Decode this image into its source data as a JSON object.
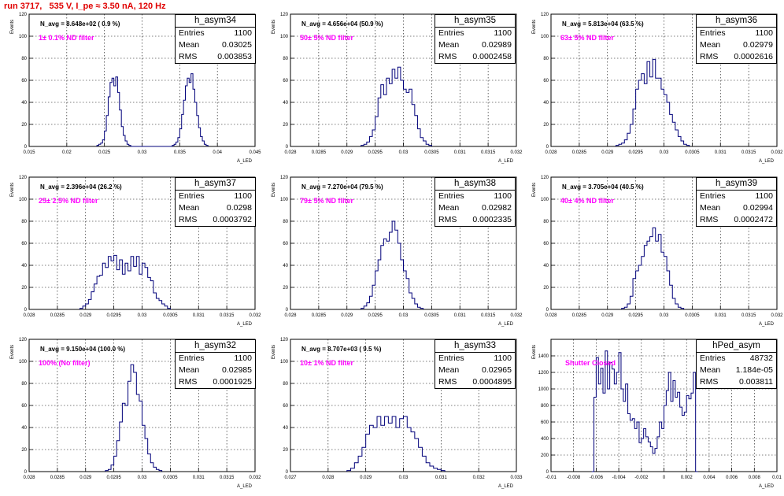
{
  "header": {
    "title": "run 3717,   535 V, I_pe ≈ 3.50 nA, 120 Hz"
  },
  "chart_data": [
    {
      "type": "bar",
      "name": "h_asym34",
      "n_avg": "N_avg = 8.648e+02 ( 0.9 %)",
      "filter": "1± 0.1% ND filter",
      "entries": "1100",
      "mean": "0.03025",
      "rms": "0.003853",
      "xlim": [
        0.015,
        0.045
      ],
      "xticks": [
        "0.015",
        "0.02",
        "0.025",
        "0.03",
        "0.035",
        "0.04",
        "0.045"
      ],
      "ylim": [
        0,
        120
      ],
      "yticks": [
        "0",
        "20",
        "40",
        "60",
        "80",
        "100",
        "120"
      ],
      "ylabel": "Events",
      "xlabel": "A_LED",
      "bin_start": 0.024,
      "bin_width": 0.00025,
      "values": [
        1,
        2,
        3,
        6,
        14,
        28,
        45,
        58,
        62,
        55,
        63,
        49,
        33,
        18,
        10,
        5,
        2,
        1,
        0,
        0,
        0,
        0,
        0,
        0,
        0,
        0,
        0,
        0,
        0,
        0,
        0,
        0,
        0,
        0,
        0,
        0,
        0,
        0,
        0,
        0,
        1,
        2,
        4,
        8,
        16,
        29,
        42,
        55,
        62,
        58,
        66,
        52,
        40,
        28,
        17,
        9,
        5,
        2,
        1
      ]
    },
    {
      "type": "bar",
      "name": "h_asym35",
      "n_avg": "N_avg = 4.656e+04 (50.9 %)",
      "filter": "50± 5% ND filter",
      "entries": "1100",
      "mean": "0.02989",
      "rms": "0.0002458",
      "xlim": [
        0.028,
        0.032
      ],
      "xticks": [
        "0.028",
        "0.0285",
        "0.029",
        "0.0295",
        "0.03",
        "0.0305",
        "0.031",
        "0.0315",
        "0.032"
      ],
      "ylim": [
        0,
        120
      ],
      "yticks": [
        "0",
        "20",
        "40",
        "60",
        "80",
        "100",
        "120"
      ],
      "ylabel": "Events",
      "xlabel": "A_LED",
      "bin_start": 0.02925,
      "bin_width": 5e-05,
      "values": [
        1,
        2,
        4,
        9,
        15,
        27,
        44,
        56,
        47,
        62,
        57,
        70,
        62,
        72,
        60,
        52,
        49,
        52,
        38,
        28,
        16,
        8,
        5,
        2,
        1
      ]
    },
    {
      "type": "bar",
      "name": "h_asym36",
      "n_avg": "N_avg = 5.813e+04 (63.5 %)",
      "filter": "63± 5% ND filter",
      "entries": "1100",
      "mean": "0.02979",
      "rms": "0.0002616",
      "xlim": [
        0.028,
        0.032
      ],
      "xticks": [
        "0.028",
        "0.0285",
        "0.029",
        "0.0295",
        "0.03",
        "0.0305",
        "0.031",
        "0.0315",
        "0.032"
      ],
      "ylim": [
        0,
        120
      ],
      "yticks": [
        "0",
        "20",
        "40",
        "60",
        "80",
        "100",
        "120"
      ],
      "ylabel": "Events",
      "xlabel": "A_LED",
      "bin_start": 0.02915,
      "bin_width": 5e-05,
      "values": [
        1,
        2,
        3,
        6,
        12,
        20,
        34,
        52,
        60,
        66,
        57,
        77,
        63,
        79,
        62,
        62,
        52,
        47,
        40,
        29,
        22,
        15,
        9,
        5,
        2,
        1
      ]
    },
    {
      "type": "bar",
      "name": "h_asym37",
      "n_avg": "N_avg = 2.396e+04 (26.2 %)",
      "filter": "25± 2.5% ND filter",
      "entries": "1100",
      "mean": "0.0298",
      "rms": "0.0003792",
      "xlim": [
        0.028,
        0.032
      ],
      "xticks": [
        "0.028",
        "0.0285",
        "0.029",
        "0.0295",
        "0.03",
        "0.0305",
        "0.031",
        "0.0315",
        "0.032"
      ],
      "ylim": [
        0,
        120
      ],
      "yticks": [
        "0",
        "20",
        "40",
        "60",
        "80",
        "100",
        "120"
      ],
      "ylabel": "Events",
      "xlabel": "A_LED",
      "bin_start": 0.0289,
      "bin_width": 5e-05,
      "values": [
        1,
        3,
        5,
        9,
        16,
        23,
        30,
        31,
        42,
        38,
        48,
        44,
        49,
        36,
        45,
        32,
        42,
        35,
        48,
        39,
        48,
        32,
        42,
        38,
        29,
        26,
        15,
        10,
        8,
        5,
        3,
        1
      ]
    },
    {
      "type": "bar",
      "name": "h_asym38",
      "n_avg": "N_avg = 7.270e+04 (79.5 %)",
      "filter": "79± 5% ND filter",
      "entries": "1100",
      "mean": "0.02982",
      "rms": "0.0002335",
      "xlim": [
        0.028,
        0.032
      ],
      "xticks": [
        "0.028",
        "0.0285",
        "0.029",
        "0.0295",
        "0.03",
        "0.0305",
        "0.031",
        "0.0315",
        "0.032"
      ],
      "ylim": [
        0,
        120
      ],
      "yticks": [
        "0",
        "20",
        "40",
        "60",
        "80",
        "100",
        "120"
      ],
      "ylabel": "Events",
      "xlabel": "A_LED",
      "bin_start": 0.02925,
      "bin_width": 5e-05,
      "values": [
        1,
        3,
        6,
        12,
        22,
        35,
        45,
        58,
        64,
        62,
        70,
        80,
        72,
        60,
        45,
        35,
        28,
        15,
        10,
        5,
        2,
        1
      ]
    },
    {
      "type": "bar",
      "name": "h_asym39",
      "n_avg": "N_avg = 3.705e+04 (40.5 %)",
      "filter": "40± 4% ND filter",
      "entries": "1100",
      "mean": "0.02994",
      "rms": "0.0002472",
      "xlim": [
        0.028,
        0.032
      ],
      "xticks": [
        "0.028",
        "0.0285",
        "0.029",
        "0.0295",
        "0.03",
        "0.0305",
        "0.031",
        "0.0315",
        "0.032"
      ],
      "ylim": [
        0,
        120
      ],
      "yticks": [
        "0",
        "20",
        "40",
        "60",
        "80",
        "100",
        "120"
      ],
      "ylabel": "Events",
      "xlabel": "A_LED",
      "bin_start": 0.02925,
      "bin_width": 5e-05,
      "values": [
        1,
        2,
        5,
        12,
        28,
        35,
        40,
        48,
        58,
        62,
        66,
        74,
        62,
        68,
        52,
        48,
        35,
        22,
        10,
        5,
        2,
        1
      ]
    },
    {
      "type": "bar",
      "name": "h_asym32",
      "n_avg": "N_avg = 9.150e+04 (100.0 %)",
      "filter": "100% (No filter)",
      "entries": "1100",
      "mean": "0.02985",
      "rms": "0.0001925",
      "xlim": [
        0.028,
        0.032
      ],
      "xticks": [
        "0.028",
        "0.0285",
        "0.029",
        "0.0295",
        "0.03",
        "0.0305",
        "0.031",
        "0.0315",
        "0.032"
      ],
      "ylim": [
        0,
        120
      ],
      "yticks": [
        "0",
        "20",
        "40",
        "60",
        "80",
        "100",
        "120"
      ],
      "ylabel": "Events",
      "xlabel": "A_LED",
      "bin_start": 0.02935,
      "bin_width": 5e-05,
      "values": [
        1,
        2,
        6,
        14,
        28,
        45,
        62,
        60,
        82,
        97,
        90,
        70,
        64,
        42,
        30,
        16,
        8,
        4,
        2,
        1
      ]
    },
    {
      "type": "bar",
      "name": "h_asym33",
      "n_avg": "N_avg = 8.707e+03 ( 9.5 %)",
      "filter": "10± 1% ND filter",
      "entries": "1100",
      "mean": "0.02965",
      "rms": "0.0004895",
      "xlim": [
        0.027,
        0.033
      ],
      "xticks": [
        "0.027",
        "0.028",
        "0.029",
        "0.03",
        "0.031",
        "0.032",
        "0.033"
      ],
      "ylim": [
        0,
        120
      ],
      "yticks": [
        "0",
        "20",
        "40",
        "60",
        "80",
        "100",
        "120"
      ],
      "ylabel": "Events",
      "xlabel": "A_LED",
      "bin_start": 0.0285,
      "bin_width": 0.0001,
      "values": [
        1,
        3,
        8,
        14,
        22,
        34,
        42,
        40,
        50,
        42,
        50,
        44,
        50,
        40,
        48,
        50,
        40,
        36,
        30,
        22,
        14,
        8,
        5,
        3,
        2,
        1
      ]
    },
    {
      "type": "bar",
      "name": "hPed_asym",
      "n_avg": "",
      "filter": "Shutter Closed",
      "entries": "48732",
      "mean": "1.184e-05",
      "rms": "0.003811",
      "xlim": [
        -0.01,
        0.01
      ],
      "xticks": [
        "-0.01",
        "-0.008",
        "-0.006",
        "-0.004",
        "-0.002",
        "0",
        "0.002",
        "0.004",
        "0.006",
        "0.008",
        "0.01"
      ],
      "ylim": [
        0,
        1600
      ],
      "yticks": [
        "0",
        "200",
        "400",
        "600",
        "800",
        "1000",
        "1200",
        "1400"
      ],
      "ylabel": "Events",
      "xlabel": "A_LED",
      "bin_start": -0.0064,
      "bin_width": 0.0002,
      "values": [
        0,
        900,
        1380,
        1060,
        1250,
        950,
        1460,
        1000,
        1320,
        1240,
        1060,
        1200,
        1440,
        1000,
        850,
        1060,
        700,
        620,
        640,
        520,
        600,
        350,
        400,
        520,
        420,
        360,
        300,
        220,
        280,
        420,
        600,
        520,
        800,
        980,
        1200,
        850,
        1100,
        900,
        960,
        780,
        680,
        720,
        920,
        880,
        950,
        1200,
        0
      ]
    }
  ]
}
